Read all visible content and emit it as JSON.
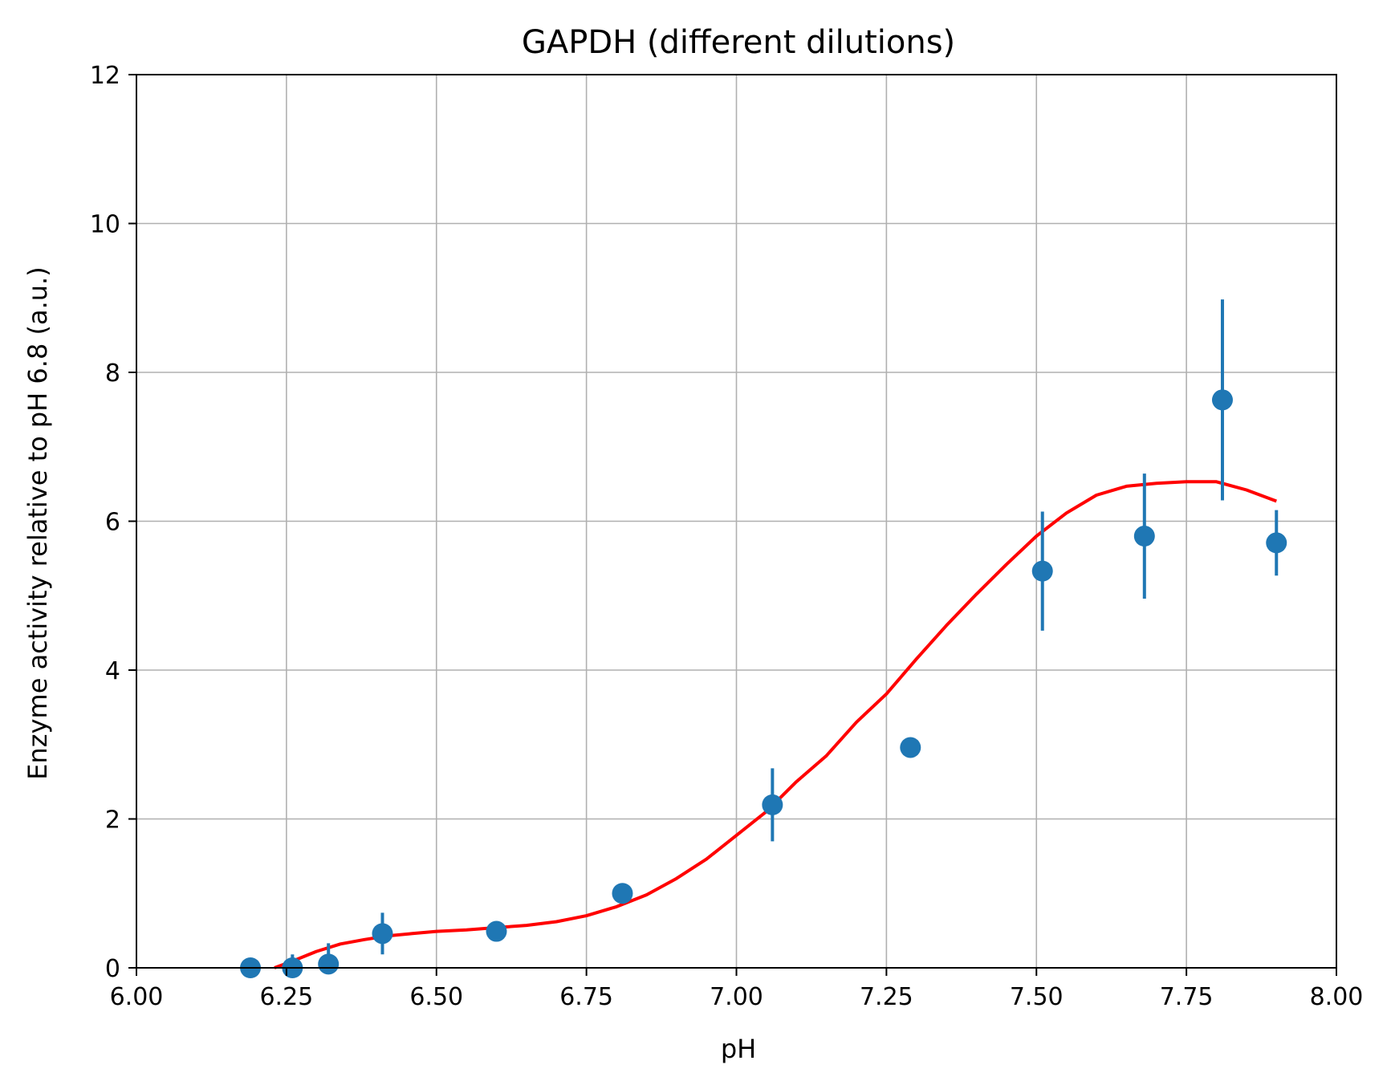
{
  "chart_data": {
    "type": "scatter",
    "title": "GAPDH (different dilutions)",
    "xlabel": "pH",
    "ylabel": "Enzyme activity relative to pH 6.8 (a.u.)",
    "xlim": [
      6.0,
      8.0
    ],
    "ylim": [
      0,
      12
    ],
    "x_ticks": [
      "6.00",
      "6.25",
      "6.50",
      "6.75",
      "7.00",
      "7.25",
      "7.50",
      "7.75",
      "8.00"
    ],
    "y_ticks": [
      "0",
      "2",
      "4",
      "6",
      "8",
      "10",
      "12"
    ],
    "grid": true,
    "colors": {
      "points": "#1f77b4",
      "fit": "#ff0000"
    },
    "series": [
      {
        "kind": "errorbar-points",
        "x": [
          6.19,
          6.26,
          6.32,
          6.41,
          6.6,
          6.81,
          7.06,
          7.29,
          7.51,
          7.68,
          7.81,
          7.9
        ],
        "y": [
          0.0,
          0.0,
          0.05,
          0.46,
          0.49,
          1.0,
          2.19,
          2.96,
          5.33,
          5.8,
          7.63,
          5.71
        ],
        "yerr": [
          0.0,
          0.18,
          0.28,
          0.28,
          0.0,
          0.0,
          0.49,
          0.0,
          0.8,
          0.84,
          1.35,
          0.44
        ]
      },
      {
        "kind": "fit-line",
        "x": [
          6.23,
          6.26,
          6.3,
          6.34,
          6.38,
          6.42,
          6.46,
          6.5,
          6.55,
          6.6,
          6.65,
          6.7,
          6.75,
          6.8,
          6.85,
          6.9,
          6.95,
          7.0,
          7.05,
          7.1,
          7.15,
          7.2,
          7.25,
          7.3,
          7.35,
          7.4,
          7.45,
          7.5,
          7.55,
          7.6,
          7.65,
          7.7,
          7.75,
          7.8,
          7.85,
          7.9
        ],
        "y": [
          0.0,
          0.09,
          0.22,
          0.32,
          0.38,
          0.43,
          0.46,
          0.49,
          0.51,
          0.54,
          0.57,
          0.62,
          0.7,
          0.82,
          0.98,
          1.2,
          1.46,
          1.78,
          2.1,
          2.5,
          2.85,
          3.3,
          3.68,
          4.15,
          4.6,
          5.02,
          5.42,
          5.8,
          6.11,
          6.35,
          6.47,
          6.51,
          6.53,
          6.53,
          6.42,
          6.27
        ]
      }
    ]
  }
}
